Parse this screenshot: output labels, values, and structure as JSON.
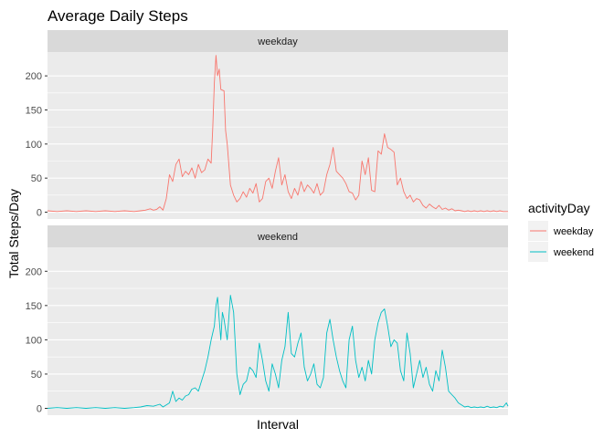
{
  "chart_data": {
    "type": "line",
    "title": "Average Daily Steps",
    "xlabel": "Interval",
    "ylabel": "Total Steps/Day",
    "ylim": [
      -10,
      235
    ],
    "yticks": [
      0,
      50,
      100,
      150,
      200
    ],
    "x_ticks_shown": false,
    "grid": true,
    "legend": {
      "title": "activityDay",
      "placement": "right"
    },
    "facets": [
      "weekday",
      "weekend"
    ],
    "series": [
      {
        "name": "weekday",
        "color": "#F8766D",
        "x": [
          0,
          6,
          12,
          18,
          24,
          30,
          36,
          42,
          48,
          54,
          58,
          61,
          64,
          66,
          68,
          70,
          72,
          74,
          76,
          78,
          80,
          82,
          84,
          86,
          88,
          90,
          92,
          94,
          96,
          98,
          100,
          102,
          103,
          104,
          105,
          106,
          107,
          108,
          110,
          111,
          112,
          114,
          116,
          118,
          120,
          122,
          124,
          126,
          128,
          130,
          132,
          134,
          136,
          138,
          140,
          142,
          144,
          146,
          148,
          150,
          152,
          154,
          156,
          158,
          160,
          162,
          164,
          166,
          168,
          170,
          172,
          174,
          176,
          178,
          180,
          182,
          184,
          186,
          188,
          190,
          192,
          194,
          196,
          198,
          200,
          202,
          204,
          206,
          208,
          210,
          212,
          214,
          216,
          218,
          220,
          222,
          224,
          226,
          228,
          230,
          232,
          234,
          236,
          238,
          240,
          242,
          244,
          246,
          248,
          250,
          252,
          254,
          256,
          258,
          260,
          262,
          264,
          266,
          268,
          270,
          272,
          274,
          276,
          278,
          280,
          282,
          284,
          287
        ],
        "values": [
          2,
          1,
          2,
          1,
          2,
          1,
          2,
          1,
          2,
          1,
          2,
          3,
          5,
          3,
          4,
          8,
          3,
          20,
          55,
          45,
          70,
          78,
          52,
          60,
          55,
          65,
          50,
          70,
          58,
          62,
          78,
          72,
          125,
          190,
          230,
          200,
          210,
          180,
          178,
          120,
          100,
          40,
          25,
          15,
          20,
          30,
          22,
          35,
          28,
          42,
          15,
          20,
          45,
          50,
          35,
          60,
          80,
          40,
          55,
          30,
          20,
          35,
          25,
          45,
          30,
          40,
          35,
          28,
          42,
          25,
          30,
          55,
          70,
          95,
          60,
          55,
          50,
          42,
          30,
          28,
          18,
          25,
          75,
          55,
          80,
          32,
          30,
          90,
          85,
          115,
          95,
          92,
          88,
          40,
          50,
          30,
          20,
          25,
          15,
          20,
          18,
          10,
          6,
          12,
          8,
          5,
          10,
          4,
          6,
          3,
          5,
          2,
          3,
          2,
          1,
          2,
          1,
          2,
          1,
          2,
          1,
          2,
          1,
          2,
          1,
          2,
          1,
          1
        ]
      },
      {
        "name": "weekend",
        "color": "#00BFC4",
        "x": [
          0,
          6,
          12,
          18,
          24,
          30,
          36,
          42,
          48,
          54,
          58,
          62,
          66,
          70,
          72,
          74,
          76,
          78,
          80,
          82,
          84,
          86,
          88,
          90,
          92,
          94,
          96,
          98,
          100,
          102,
          104,
          105,
          106,
          107,
          108,
          109,
          110,
          111,
          112,
          114,
          116,
          118,
          120,
          122,
          124,
          126,
          128,
          130,
          132,
          134,
          136,
          138,
          140,
          142,
          144,
          146,
          148,
          150,
          152,
          154,
          156,
          158,
          160,
          162,
          164,
          166,
          168,
          170,
          172,
          174,
          176,
          178,
          180,
          182,
          184,
          186,
          188,
          190,
          192,
          194,
          196,
          198,
          200,
          202,
          204,
          206,
          208,
          210,
          212,
          214,
          216,
          218,
          220,
          222,
          224,
          226,
          228,
          230,
          232,
          234,
          236,
          238,
          240,
          242,
          244,
          246,
          248,
          250,
          252,
          254,
          256,
          258,
          260,
          262,
          264,
          266,
          268,
          270,
          272,
          274,
          276,
          278,
          280,
          282,
          284,
          286,
          287
        ],
        "values": [
          0,
          1,
          0,
          1,
          0,
          1,
          0,
          1,
          0,
          1,
          2,
          4,
          3,
          6,
          2,
          5,
          8,
          25,
          10,
          15,
          12,
          18,
          20,
          28,
          30,
          25,
          40,
          55,
          75,
          100,
          120,
          150,
          162,
          130,
          100,
          140,
          130,
          115,
          100,
          165,
          140,
          50,
          20,
          35,
          40,
          60,
          55,
          45,
          95,
          70,
          40,
          25,
          65,
          50,
          30,
          70,
          90,
          140,
          80,
          75,
          95,
          110,
          60,
          40,
          50,
          65,
          35,
          30,
          45,
          110,
          130,
          100,
          75,
          55,
          40,
          30,
          100,
          120,
          70,
          45,
          60,
          40,
          70,
          50,
          100,
          125,
          140,
          145,
          120,
          90,
          100,
          95,
          55,
          40,
          110,
          80,
          30,
          50,
          70,
          45,
          60,
          35,
          25,
          55,
          40,
          85,
          60,
          25,
          20,
          15,
          8,
          5,
          2,
          3,
          1,
          2,
          1,
          2,
          1,
          3,
          1,
          2,
          1,
          3,
          2,
          8,
          3
        ]
      }
    ]
  }
}
